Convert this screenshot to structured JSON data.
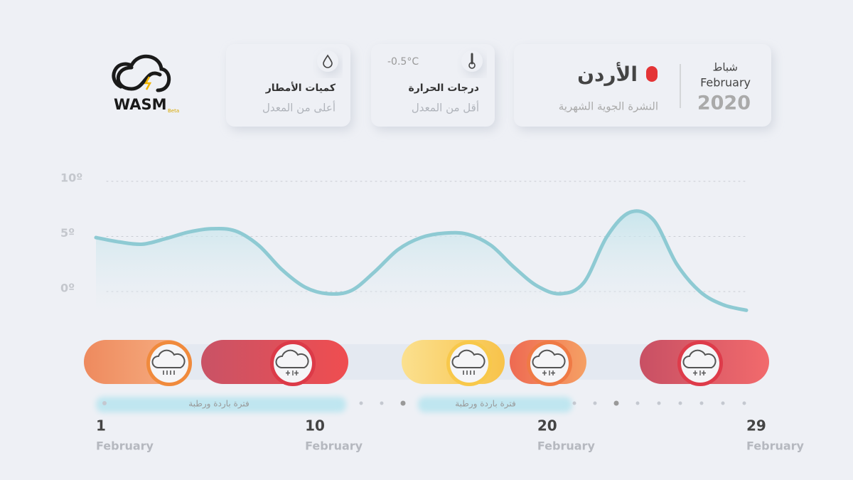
{
  "logo": {
    "name": "WASM",
    "badge": "Beta"
  },
  "header": {
    "month_ar": "شباط",
    "month_en": "February",
    "year": "2020",
    "country": "الأردن",
    "subtitle": "النشرة الجوية الشهرية",
    "temperature": {
      "title": "درجات الحرارة",
      "status": "أقل من المعدل",
      "value": "-0.5°C"
    },
    "rain": {
      "title": "كميات الأمطار",
      "status": "أعلى من المعدل"
    }
  },
  "chart_data": {
    "type": "line",
    "color": "#8ecad3",
    "x": [
      1,
      2,
      3,
      4,
      5,
      6,
      7,
      8,
      9,
      10,
      11,
      12,
      13,
      14,
      15,
      16,
      17,
      18,
      19,
      20,
      21,
      22,
      23,
      24,
      25,
      26,
      27,
      28,
      29
    ],
    "values": [
      4.9,
      4.5,
      4.3,
      4.8,
      5.4,
      5.7,
      5.5,
      4.2,
      2.0,
      0.4,
      -0.2,
      0.1,
      1.8,
      3.8,
      4.9,
      5.3,
      5.2,
      4.2,
      2.2,
      0.5,
      -0.2,
      0.8,
      5.0,
      7.2,
      6.5,
      2.5,
      0.0,
      -1.2,
      -1.7
    ],
    "xlim": [
      1,
      29
    ],
    "xticks": [
      1,
      10,
      20,
      29
    ],
    "x_tick_sublabel": "February",
    "ylim": [
      -2,
      10
    ],
    "yticks": [
      {
        "value": 0,
        "label": "0º"
      },
      {
        "value": 5,
        "label": "5º"
      },
      {
        "value": 10,
        "label": "10º"
      }
    ],
    "grid": true
  },
  "periods": [
    {
      "label": "فترة باردة ورطبة"
    },
    {
      "label": "فترة باردة ورطبة"
    }
  ]
}
